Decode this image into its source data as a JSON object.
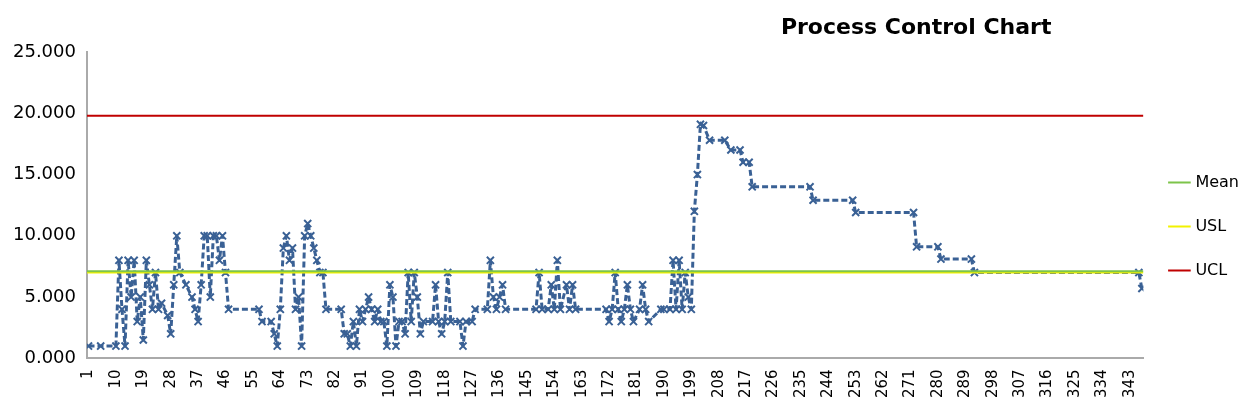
{
  "chart_data": {
    "type": "line",
    "title": "Process Control Chart",
    "xlim": [
      0.5,
      347.5
    ],
    "xticks": [
      1,
      10,
      19,
      28,
      37,
      46,
      55,
      64,
      73,
      82,
      91,
      100,
      109,
      118,
      127,
      136,
      145,
      154,
      163,
      172,
      181,
      190,
      199,
      208,
      217,
      226,
      235,
      244,
      253,
      262,
      271,
      280,
      289,
      298,
      307,
      316,
      325,
      334,
      343
    ],
    "ylim": [
      0,
      25
    ],
    "yticks": [
      {
        "value": 0,
        "label": "0.000"
      },
      {
        "value": 5,
        "label": "5.000"
      },
      {
        "value": 10,
        "label": "10.000"
      },
      {
        "value": 15,
        "label": "15.000"
      },
      {
        "value": 20,
        "label": "20.000"
      },
      {
        "value": 25,
        "label": "25.000"
      }
    ],
    "series": [
      {
        "color": "#3a6195",
        "x": [
          1,
          5,
          10,
          11,
          12,
          13,
          14,
          15,
          16,
          17,
          18,
          19,
          20,
          21,
          22,
          23,
          24,
          25,
          27,
          28,
          29,
          30,
          31,
          33,
          35,
          36,
          37,
          38,
          39,
          40,
          41,
          42,
          43,
          44,
          45,
          46,
          47,
          57,
          58,
          61,
          62,
          63,
          64,
          65,
          66,
          67,
          68,
          69,
          70,
          71,
          72,
          73,
          74,
          75,
          76,
          77,
          78,
          79,
          84,
          85,
          86,
          87,
          88,
          89,
          90,
          91,
          92,
          93,
          94,
          95,
          96,
          97,
          98,
          99,
          100,
          101,
          102,
          103,
          104,
          105,
          106,
          107,
          108,
          109,
          110,
          111,
          114,
          115,
          116,
          117,
          118,
          119,
          120,
          123,
          124,
          125,
          127,
          128,
          132,
          133,
          134,
          135,
          136,
          137,
          138,
          148,
          149,
          150,
          152,
          153,
          154,
          155,
          156,
          158,
          159,
          160,
          161,
          171,
          172,
          173,
          174,
          175,
          176,
          177,
          178,
          179,
          180,
          182,
          183,
          184,
          185,
          189,
          190,
          192,
          193,
          194,
          195,
          196,
          197,
          198,
          199,
          200,
          201,
          202,
          203,
          205,
          210,
          212,
          215,
          216,
          218,
          219,
          238,
          239,
          252,
          253,
          272,
          273,
          280,
          281,
          291,
          292,
          346,
          347
        ],
        "values": [
          1.0,
          1.0,
          1.0,
          8.0,
          4.0,
          1.0,
          8.0,
          5.0,
          8.0,
          3.0,
          5.0,
          1.5,
          8.0,
          6.0,
          4.0,
          7.0,
          4.0,
          4.5,
          3.5,
          2.0,
          6.0,
          10.0,
          7.0,
          6.0,
          5.0,
          4.0,
          3.0,
          6.0,
          10.0,
          10.0,
          5.0,
          10.0,
          10.0,
          8.0,
          10.0,
          7.0,
          4.0,
          4.0,
          3.0,
          3.0,
          2.0,
          1.0,
          4.0,
          9.0,
          10.0,
          8.0,
          9.0,
          4.0,
          5.0,
          1.0,
          10.0,
          11.0,
          10.0,
          9.0,
          8.0,
          7.0,
          7.0,
          4.0,
          4.0,
          2.0,
          2.0,
          1.0,
          3.0,
          1.0,
          4.0,
          3.0,
          4.0,
          5.0,
          4.0,
          3.0,
          4.0,
          3.0,
          3.0,
          1.0,
          6.0,
          5.0,
          1.0,
          3.0,
          3.0,
          2.0,
          7.0,
          3.0,
          7.0,
          5.0,
          2.0,
          3.0,
          3.0,
          6.0,
          3.0,
          2.0,
          3.0,
          7.0,
          3.0,
          3.0,
          1.0,
          3.0,
          3.0,
          4.0,
          4.0,
          8.0,
          5.0,
          4.0,
          5.0,
          6.0,
          4.0,
          4.0,
          7.0,
          4.0,
          4.0,
          6.0,
          4.0,
          8.0,
          4.0,
          6.0,
          4.0,
          6.0,
          4.0,
          4.0,
          3.0,
          4.0,
          7.0,
          4.0,
          3.0,
          4.0,
          6.0,
          4.0,
          3.0,
          4.0,
          6.0,
          4.0,
          3.0,
          4.0,
          4.0,
          4.0,
          8.0,
          4.0,
          8.0,
          4.0,
          7.0,
          5.0,
          4.0,
          12.0,
          15.0,
          19.1,
          19.0,
          17.8,
          17.8,
          17.0,
          17.0,
          16.0,
          16.0,
          14.0,
          14.0,
          12.9,
          12.9,
          11.9,
          11.9,
          9.1,
          9.1,
          8.1,
          8.1,
          7.0,
          7.0,
          5.7
        ]
      }
    ],
    "ref_lines": [
      {
        "axis": "y",
        "value": 7.1,
        "label": "Mean",
        "color": "#7dc44a"
      },
      {
        "axis": "y",
        "value": 7.0,
        "label": "USL",
        "color": "#f2f200"
      },
      {
        "axis": "y",
        "value": 19.8,
        "label": "UCL",
        "color": "#c00000"
      }
    ],
    "legend": "right",
    "marker": "cross",
    "line_style": "dashed",
    "grid": false
  }
}
